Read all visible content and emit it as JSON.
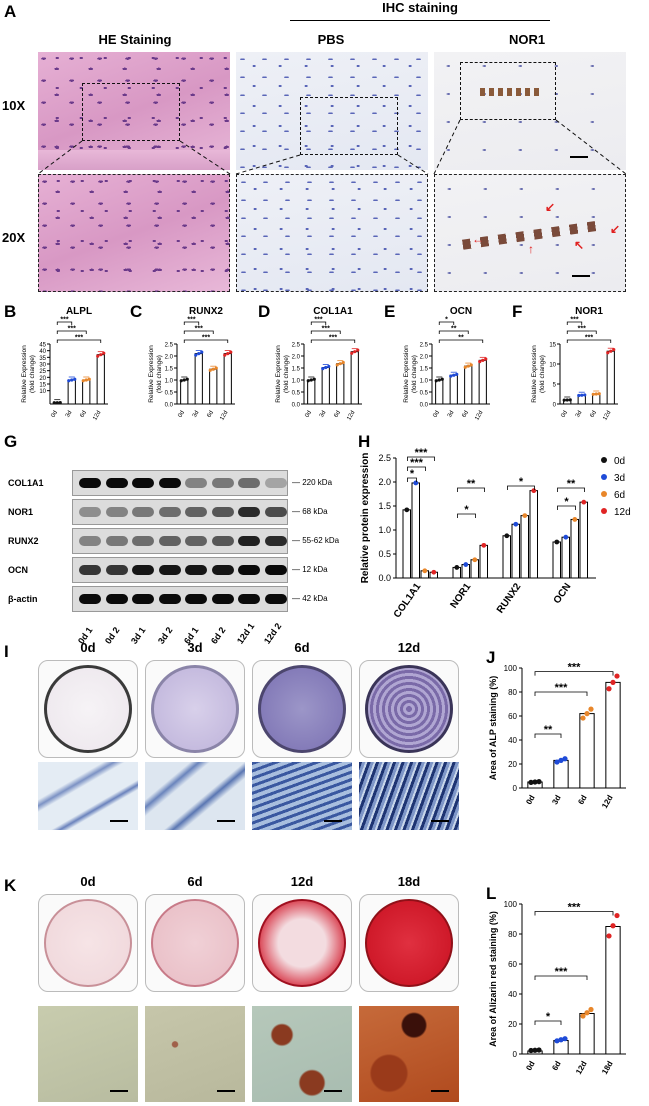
{
  "panels": {
    "A": {
      "letter": "A",
      "he_header": "HE Staining",
      "ihc_header": "IHC staining",
      "pbs_header": "PBS",
      "nor1_header": "NOR1",
      "row1": "10X",
      "row2": "20X"
    },
    "B": {
      "letter": "B"
    },
    "C": {
      "letter": "C"
    },
    "D": {
      "letter": "D"
    },
    "E": {
      "letter": "E"
    },
    "F": {
      "letter": "F"
    },
    "G": {
      "letter": "G"
    },
    "H": {
      "letter": "H"
    },
    "I": {
      "letter": "I"
    },
    "J": {
      "letter": "J"
    },
    "K": {
      "letter": "K"
    },
    "L": {
      "letter": "L"
    }
  },
  "qpcr_ylabel_1": "Relative  Expression",
  "qpcr_ylabel_2": "(fold change)",
  "qpcr_categories": [
    "0d",
    "3d",
    "6d",
    "12d"
  ],
  "chart_data": [
    {
      "type": "bar",
      "title": "ALPL",
      "categories": [
        "0d",
        "3d",
        "6d",
        "12d"
      ],
      "values": [
        1,
        18,
        18,
        37
      ],
      "ylim": [
        0,
        45
      ],
      "yticks_low": [
        "0",
        "1"
      ],
      "yticks": [
        "10",
        "15",
        "20",
        "25",
        "30",
        "35",
        "40",
        "45"
      ],
      "sig": [
        "***",
        "***",
        "***"
      ],
      "colors": [
        "#111111",
        "#1f4bd8",
        "#e8862a",
        "#e02424"
      ]
    },
    {
      "type": "bar",
      "title": "RUNX2",
      "categories": [
        "0d",
        "3d",
        "6d",
        "12d"
      ],
      "values": [
        1.0,
        2.1,
        1.45,
        2.1
      ],
      "ylim": [
        0,
        2.5
      ],
      "yticks": [
        "0.0",
        "0.5",
        "1.0",
        "1.5",
        "2.0",
        "2.5"
      ],
      "sig": [
        "***",
        "***",
        "***"
      ]
    },
    {
      "type": "bar",
      "title": "COL1A1",
      "categories": [
        "0d",
        "3d",
        "6d",
        "12d"
      ],
      "values": [
        1.0,
        1.52,
        1.68,
        2.18
      ],
      "ylim": [
        0,
        2.5
      ],
      "yticks": [
        "0.0",
        "0.5",
        "1.0",
        "1.5",
        "2.0",
        "2.5"
      ],
      "sig": [
        "***",
        "***",
        "***"
      ]
    },
    {
      "type": "bar",
      "title": "OCN",
      "categories": [
        "0d",
        "3d",
        "6d",
        "12d"
      ],
      "values": [
        1.0,
        1.2,
        1.58,
        1.82
      ],
      "ylim": [
        0,
        2.5
      ],
      "yticks": [
        "0.0",
        "0.5",
        "1.0",
        "1.5",
        "2.0",
        "2.5"
      ],
      "sig": [
        "*",
        "**",
        "**"
      ]
    },
    {
      "type": "bar",
      "title": "NOR1",
      "categories": [
        "0d",
        "3d",
        "6d",
        "12d"
      ],
      "values": [
        1,
        2.2,
        2.5,
        13.2
      ],
      "ylim": [
        0,
        15
      ],
      "yticks": [
        "0",
        "5",
        "10",
        "15"
      ],
      "sig": [
        "***",
        "***",
        "***"
      ]
    },
    {
      "type": "bar",
      "title": "",
      "ylabel": "Relative protein expression",
      "categories": [
        "COL1A1",
        "NOR1",
        "RUNX2",
        "OCN"
      ],
      "legend": [
        "0d",
        "3d",
        "6d",
        "12d"
      ],
      "series": [
        {
          "name": "0d",
          "values": [
            1.42,
            0.22,
            0.88,
            0.75
          ]
        },
        {
          "name": "3d",
          "values": [
            1.98,
            0.28,
            1.12,
            0.85
          ]
        },
        {
          "name": "6d",
          "values": [
            0.15,
            0.38,
            1.3,
            1.22
          ]
        },
        {
          "name": "12d",
          "values": [
            0.12,
            0.68,
            1.82,
            1.58
          ]
        }
      ],
      "ylim": [
        0,
        2.5
      ],
      "yticks": [
        "0.0",
        "0.5",
        "1.0",
        "1.5",
        "2.0",
        "2.5"
      ],
      "sig": [
        "*",
        "***",
        "***",
        "**",
        "*",
        "*",
        "**",
        "*"
      ]
    },
    {
      "type": "bar",
      "title": "",
      "ylabel": "Area of ALP staining (%)",
      "categories": [
        "0d",
        "3d",
        "6d",
        "12d"
      ],
      "values": [
        5,
        23,
        62,
        88
      ],
      "ylim": [
        0,
        100
      ],
      "yticks": [
        "0",
        "20",
        "40",
        "60",
        "80",
        "100"
      ],
      "sig": [
        "**",
        "***",
        "***"
      ]
    },
    {
      "type": "bar",
      "title": "",
      "ylabel": "Area of Alizarin red staining (%)",
      "categories": [
        "0d",
        "6d",
        "12d",
        "18d"
      ],
      "values": [
        2,
        9,
        27,
        85
      ],
      "ylim": [
        0,
        100
      ],
      "yticks": [
        "0",
        "20",
        "40",
        "60",
        "80",
        "100"
      ],
      "sig": [
        "*",
        "***",
        "***"
      ]
    }
  ],
  "blot": {
    "proteins": [
      "COL1A1",
      "NOR1",
      "RUNX2",
      "OCN",
      "β-actin"
    ],
    "kda": [
      "220 kDa",
      "68 kDa",
      "55-62 kDa",
      "12 kDa",
      "42 kDa"
    ],
    "lanes": [
      "0d 1",
      "0d 2",
      "3d 1",
      "3d 2",
      "6d 1",
      "6d 2",
      "12d 1",
      "12d 2"
    ]
  },
  "alp_days": [
    "0d",
    "3d",
    "6d",
    "12d"
  ],
  "ars_days": [
    "0d",
    "6d",
    "12d",
    "18d"
  ],
  "colors": {
    "d0": "#111111",
    "d3": "#1f4bd8",
    "d6": "#e8862a",
    "d12": "#e02424"
  }
}
